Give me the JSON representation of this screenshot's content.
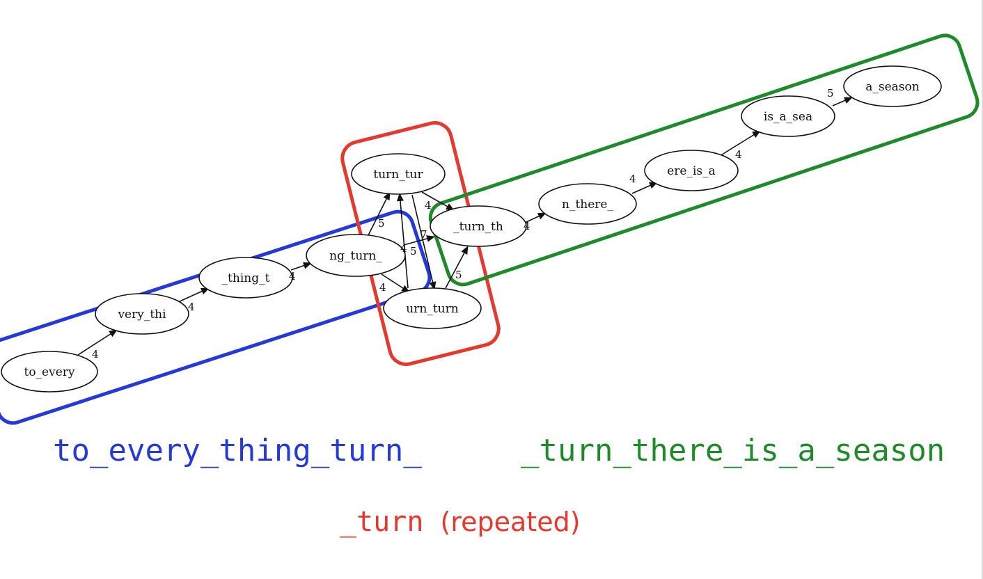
{
  "colors": {
    "blue": "#2439d8",
    "red": "#e23a2e",
    "green": "#1f8a2a",
    "ink": "#111111"
  },
  "diagram": {
    "nodes": {
      "to_every": "to_every",
      "very_thi": "very_thi",
      "thing_t": "_thing_t",
      "ng_turn": "ng_turn_",
      "turn_tur": "turn_tur",
      "turn_turn": "urn_turn",
      "turn_th": "_turn_th",
      "n_there": "n_there_",
      "ere_is_a": "ere_is_a",
      "is_a_sea": "is_a_sea",
      "a_season": "a_season"
    },
    "edge_labels": {
      "to_every__very_thi": "4",
      "very_thi__thing_t": "4",
      "thing_t__ng_turn": "4",
      "ng_turn__turn_tur": "5",
      "ng_turn__turn_th": "4",
      "ng_turn__turn_turn": "4",
      "turn_tur__turn_th": "4",
      "turn_tur__turn_turn": "7",
      "turn_turn__turn_tur": "5",
      "turn_turn__turn_th": "5",
      "turn_th__n_there": "4",
      "n_there__ere_is_a": "4",
      "ere_is_a__is_a_sea": "4",
      "is_a_sea__a_season": "5"
    }
  },
  "captions": {
    "blue_phrase": "to_every_thing_turn_",
    "green_phrase": "_turn_there_is_a_season",
    "red_phrase": "_turn",
    "red_note": "(repeated)"
  }
}
